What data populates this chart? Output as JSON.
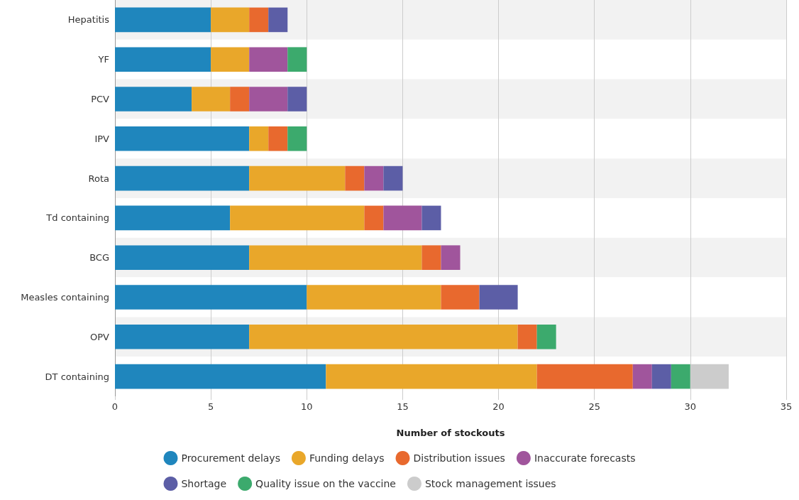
{
  "chart_data": {
    "type": "bar",
    "orientation": "horizontal",
    "stacked": true,
    "xlabel": "Number of stockouts",
    "categories": [
      "Hepatitis",
      "YF",
      "PCV",
      "IPV",
      "Rota",
      "Td containing",
      "BCG",
      "Measles containing",
      "OPV",
      "DT containing"
    ],
    "series": [
      {
        "name": "Procurement delays",
        "color": "#1f86bd",
        "values": [
          5,
          5,
          4,
          7,
          7,
          6,
          7,
          10,
          7,
          11
        ]
      },
      {
        "name": "Funding delays",
        "color": "#e9a72a",
        "values": [
          2,
          2,
          2,
          1,
          5,
          7,
          9,
          7,
          14,
          11
        ]
      },
      {
        "name": "Distribution issues",
        "color": "#e8692e",
        "values": [
          1,
          null,
          1,
          1,
          1,
          1,
          1,
          2,
          1,
          5
        ]
      },
      {
        "name": "Inaccurate forecasts",
        "color": "#a0559c",
        "values": [
          null,
          2,
          2,
          null,
          1,
          2,
          1,
          null,
          null,
          1
        ]
      },
      {
        "name": "Shortage",
        "color": "#5c5ea6",
        "values": [
          1,
          null,
          1,
          null,
          1,
          1,
          null,
          2,
          null,
          1
        ]
      },
      {
        "name": "Quality issue on the vaccine",
        "color": "#3caa6d",
        "values": [
          null,
          1,
          null,
          1,
          null,
          null,
          null,
          null,
          1,
          1
        ]
      },
      {
        "name": "Stock management issues",
        "color": "#cccccc",
        "values": [
          null,
          null,
          null,
          null,
          null,
          null,
          null,
          null,
          null,
          2
        ]
      }
    ],
    "xlim": [
      0,
      35
    ],
    "xticks": [
      0,
      5,
      10,
      15,
      20,
      25,
      30,
      35
    ],
    "grid": "x",
    "legend": "bottom"
  }
}
